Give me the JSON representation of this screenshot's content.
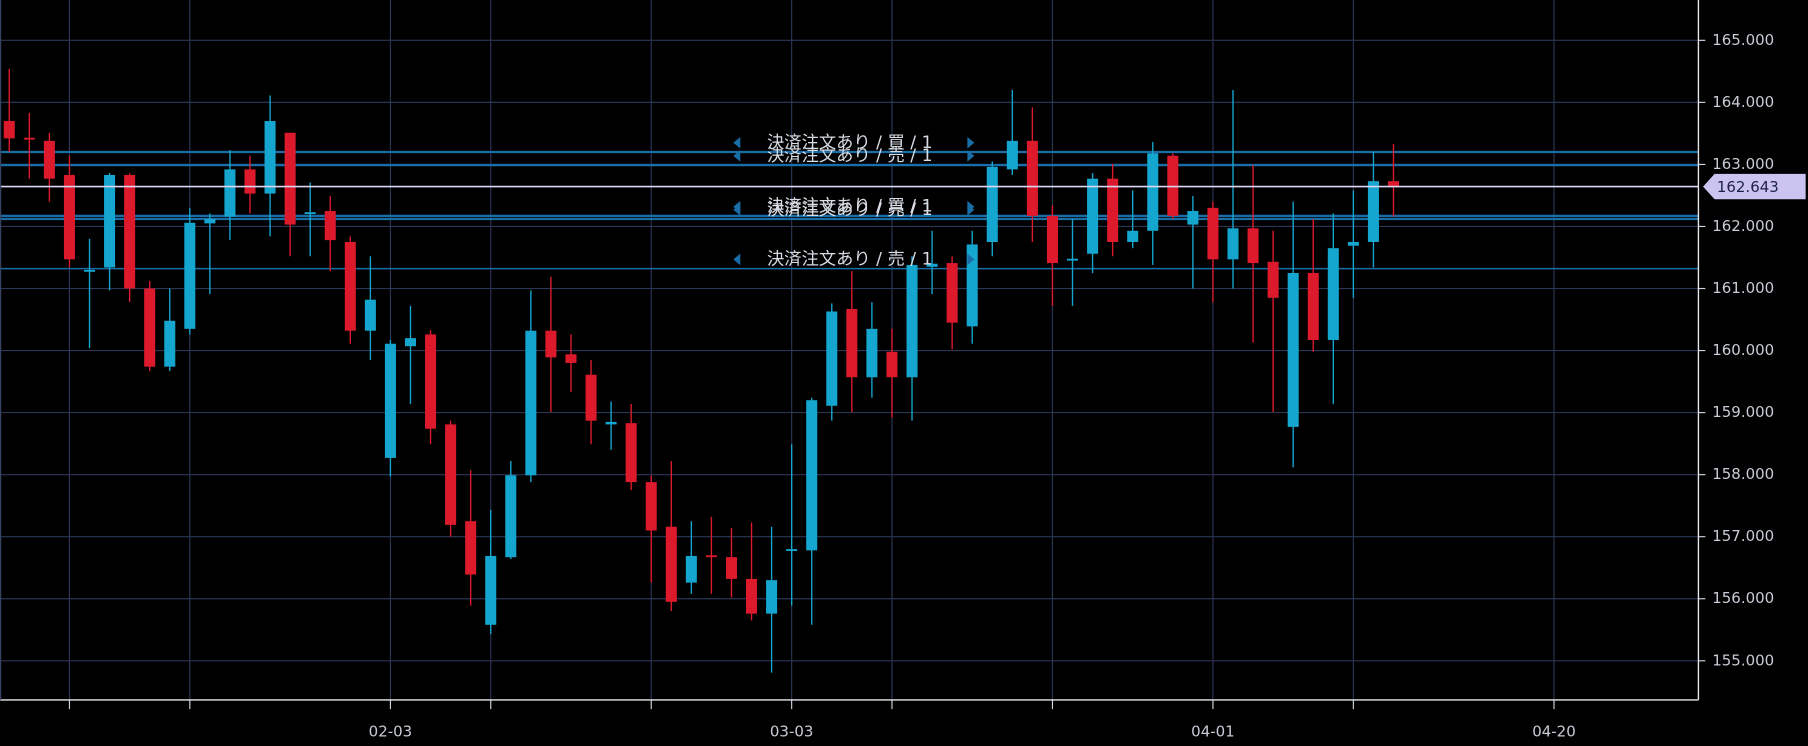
{
  "chart_data": {
    "type": "candlestick",
    "open": [
      163.7,
      163.43,
      163.38,
      162.83,
      161.27,
      161.34,
      162.83,
      161.0,
      159.74,
      160.35,
      162.05,
      162.16,
      162.92,
      162.53,
      163.51,
      162.2,
      162.25,
      161.75,
      160.32,
      158.27,
      160.07,
      160.26,
      158.81,
      157.25,
      155.58,
      156.67,
      157.99,
      160.32,
      159.94,
      159.61,
      158.81,
      158.83,
      157.88,
      157.16,
      156.26,
      156.7,
      156.67,
      156.32,
      155.76,
      156.77,
      156.78,
      159.11,
      160.67,
      159.57,
      159.98,
      159.57,
      161.35,
      161.41,
      160.39,
      161.75,
      162.92,
      163.38,
      162.17,
      161.45,
      161.56,
      162.77,
      161.75,
      161.93,
      163.14,
      162.03,
      162.3,
      161.47,
      161.97,
      161.43,
      158.77,
      161.25,
      160.17,
      161.69,
      161.75,
      162.73
    ],
    "high": [
      164.54,
      163.83,
      163.51,
      163.14,
      161.8,
      162.86,
      162.86,
      161.12,
      161.0,
      162.3,
      162.21,
      163.23,
      163.14,
      164.11,
      163.51,
      162.71,
      162.49,
      161.84,
      161.52,
      160.17,
      160.72,
      160.33,
      158.87,
      158.07,
      157.43,
      158.22,
      160.97,
      161.19,
      160.26,
      159.85,
      159.18,
      159.14,
      157.99,
      158.22,
      157.25,
      157.32,
      157.14,
      157.23,
      157.16,
      158.49,
      159.24,
      160.76,
      161.28,
      160.78,
      160.35,
      161.52,
      161.93,
      161.52,
      161.93,
      163.05,
      164.2,
      163.92,
      162.34,
      162.12,
      162.86,
      163.01,
      162.58,
      163.36,
      163.18,
      162.49,
      162.4,
      164.2,
      162.99,
      161.93,
      162.4,
      162.12,
      162.21,
      162.58,
      163.2,
      163.33
    ],
    "low": [
      163.2,
      162.77,
      162.4,
      161.34,
      160.04,
      160.97,
      160.78,
      159.67,
      159.67,
      160.26,
      160.91,
      161.78,
      162.21,
      161.84,
      161.52,
      161.52,
      161.28,
      160.11,
      159.85,
      157.97,
      159.14,
      158.49,
      157.0,
      155.89,
      155.43,
      156.64,
      157.88,
      159.01,
      159.33,
      158.49,
      158.4,
      157.75,
      156.26,
      155.8,
      156.08,
      156.08,
      156.02,
      155.65,
      154.81,
      155.89,
      155.58,
      158.87,
      159.01,
      159.24,
      158.92,
      158.87,
      160.91,
      160.02,
      160.11,
      161.52,
      162.83,
      161.75,
      160.72,
      160.72,
      161.25,
      161.52,
      161.65,
      161.38,
      162.12,
      161.0,
      160.78,
      161.0,
      160.13,
      159.01,
      158.12,
      159.98,
      159.14,
      160.85,
      161.34,
      162.16
    ],
    "close": [
      163.42,
      163.4,
      162.77,
      161.47,
      161.3,
      162.83,
      161.0,
      159.74,
      160.48,
      162.06,
      162.12,
      162.92,
      162.53,
      163.7,
      162.03,
      162.23,
      161.78,
      160.32,
      160.82,
      160.11,
      160.2,
      158.74,
      157.19,
      156.39,
      156.69,
      157.99,
      160.32,
      159.89,
      159.8,
      158.87,
      158.85,
      157.88,
      157.1,
      155.95,
      156.69,
      156.67,
      156.32,
      155.76,
      156.3,
      156.8,
      159.2,
      160.63,
      159.57,
      160.35,
      159.57,
      161.38,
      161.4,
      160.45,
      161.71,
      162.96,
      163.38,
      162.17,
      161.41,
      161.48,
      162.77,
      161.75,
      161.93,
      163.18,
      162.17,
      162.25,
      161.47,
      161.97,
      161.41,
      160.85,
      161.25,
      160.17,
      161.65,
      161.75,
      162.73,
      162.643
    ],
    "up_color": "#15a6cf",
    "down_color": "#dc1a2c",
    "xlim": [
      -0.46,
      84.2
    ],
    "xticks": [
      {
        "value": 19,
        "label": "02-03"
      },
      {
        "value": 39,
        "label": "03-03"
      },
      {
        "value": 60,
        "label": "04-01"
      },
      {
        "value": 77,
        "label": "04-20"
      }
    ],
    "xgrid": [
      3,
      9,
      24,
      32,
      44,
      52,
      67
    ],
    "ylim": [
      154.37,
      165.65
    ],
    "yticks": [
      {
        "value": 155,
        "label": "155.000"
      },
      {
        "value": 156,
        "label": "156.000"
      },
      {
        "value": 157,
        "label": "157.000"
      },
      {
        "value": 158,
        "label": "158.000"
      },
      {
        "value": 159,
        "label": "159.000"
      },
      {
        "value": 160,
        "label": "160.000"
      },
      {
        "value": 161,
        "label": "161.000"
      },
      {
        "value": 162,
        "label": "162.000"
      },
      {
        "value": 163,
        "label": "163.000"
      },
      {
        "value": 164,
        "label": "164.000"
      },
      {
        "value": 165,
        "label": "165.000"
      }
    ],
    "grid": true,
    "last_price": 162.643,
    "orders": [
      {
        "label": "決済注文あり / 買 / 1",
        "price": 163.2
      },
      {
        "label": "決済注文あり / 売 / 1",
        "price": 162.99
      },
      {
        "label": "決済注文あり / 買 / 1",
        "price": 162.17
      },
      {
        "label": "決済注文あり / 売 / 1",
        "price": 162.12
      },
      {
        "label": "決済注文あり / 売 / 1",
        "price": 161.32
      }
    ]
  }
}
